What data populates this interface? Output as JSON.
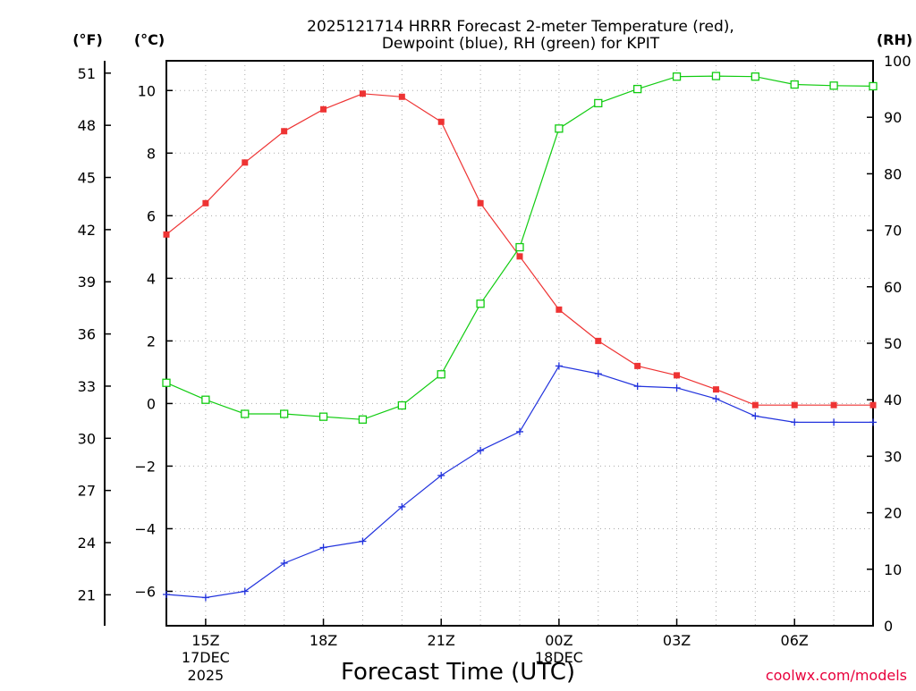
{
  "chart_data": {
    "type": "line",
    "title_lines": [
      "2025121714 HRRR Forecast 2-meter Temperature (red),",
      "Dewpoint (blue), RH (green) for KPIT"
    ],
    "xlabel": "Forecast Time (UTC)",
    "credit": "coolwx.com/models",
    "axis_units": {
      "fahrenheit": "(°F)",
      "celsius": "(°C)",
      "rh": "(RH)"
    },
    "x": [
      14,
      15,
      16,
      17,
      18,
      19,
      20,
      21,
      22,
      23,
      24,
      25,
      26,
      27,
      28,
      29,
      30,
      31,
      32
    ],
    "xlim": [
      14,
      32
    ],
    "x_ticks": [
      {
        "x": 15,
        "label": "15Z",
        "sub": [
          "17DEC",
          "2025"
        ]
      },
      {
        "x": 18,
        "label": "18Z",
        "sub": []
      },
      {
        "x": 21,
        "label": "21Z",
        "sub": []
      },
      {
        "x": 24,
        "label": "00Z",
        "sub": [
          "18DEC"
        ]
      },
      {
        "x": 27,
        "label": "03Z",
        "sub": []
      },
      {
        "x": 30,
        "label": "06Z",
        "sub": []
      }
    ],
    "celsius_axis": {
      "ylim": [
        -7.1,
        10.95
      ],
      "ticks": [
        -6,
        -4,
        -2,
        0,
        2,
        4,
        6,
        8,
        10
      ],
      "labels": [
        "−6",
        "−4",
        "−2",
        "0",
        "2",
        "4",
        "6",
        "8",
        "10"
      ]
    },
    "fahrenheit_axis": {
      "ticks": [
        21,
        24,
        27,
        30,
        33,
        36,
        39,
        42,
        45,
        48,
        51
      ]
    },
    "rh_axis": {
      "ylim": [
        0,
        100
      ],
      "ticks": [
        0,
        10,
        20,
        30,
        40,
        50,
        60,
        70,
        80,
        90,
        100
      ]
    },
    "grid": true,
    "series": [
      {
        "name": "2-meter Temperature",
        "unit": "C",
        "color": "#ee3333",
        "marker": "filled-square",
        "values": [
          5.4,
          6.4,
          7.7,
          8.7,
          9.4,
          9.9,
          9.8,
          9.0,
          6.4,
          4.7,
          3.0,
          2.0,
          1.2,
          0.9,
          0.45,
          -0.05,
          -0.05,
          -0.05,
          -0.05
        ]
      },
      {
        "name": "Dewpoint",
        "unit": "C",
        "color": "#2233dd",
        "marker": "plus",
        "values": [
          -6.1,
          -6.2,
          -6.0,
          -5.1,
          -4.6,
          -4.4,
          -3.3,
          -2.3,
          -1.5,
          -0.9,
          1.2,
          0.95,
          0.55,
          0.5,
          0.15,
          -0.4,
          -0.6,
          -0.6,
          -0.6
        ]
      },
      {
        "name": "RH",
        "unit": "%",
        "color": "#11cc11",
        "marker": "open-square",
        "values": [
          43,
          40,
          37.5,
          37.5,
          37,
          36.5,
          39,
          44.5,
          57,
          67,
          88,
          92.5,
          95,
          97.2,
          97.3,
          97.2,
          95.8,
          95.6,
          95.5
        ]
      }
    ]
  }
}
